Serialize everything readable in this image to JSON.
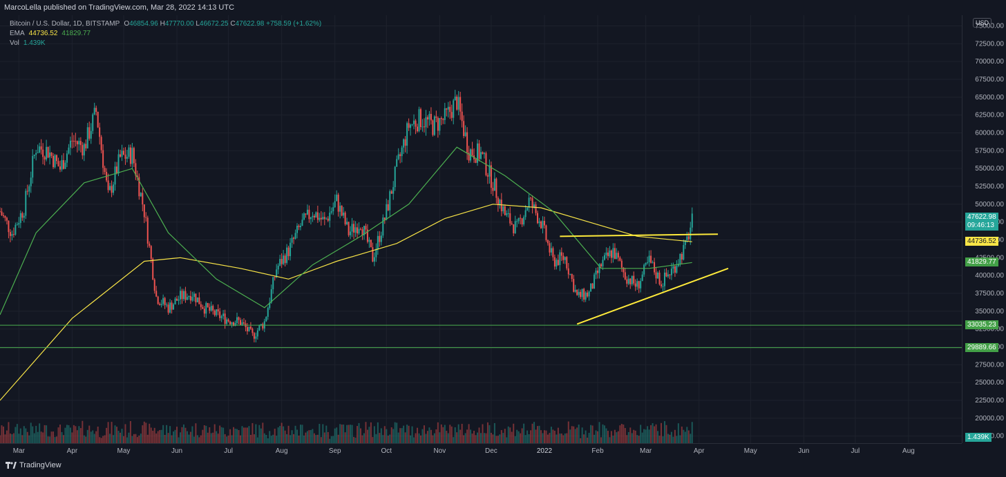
{
  "header": {
    "publisher": "MarcoLella published on TradingView.com, Mar 28, 2022 14:13 UTC"
  },
  "legend": {
    "symbol": "Bitcoin / U.S. Dollar, 1D, BITSTAMP",
    "open_label": "O",
    "open": "46854.96",
    "high_label": "H",
    "high": "47770.00",
    "low_label": "L",
    "low": "46672.25",
    "close_label": "C",
    "close": "47622.98",
    "change": "+758.59 (+1.62%)",
    "ema_label": "EMA",
    "ema1": "44736.52",
    "ema2": "41829.77",
    "vol_label": "Vol",
    "vol": "1.439K"
  },
  "price_axis": {
    "currency": "USD",
    "ticks": [
      "75000.00",
      "72500.00",
      "70000.00",
      "67500.00",
      "65000.00",
      "62500.00",
      "60000.00",
      "57500.00",
      "55000.00",
      "52500.00",
      "50000.00",
      "47500.00",
      "45000.00",
      "42500.00",
      "40000.00",
      "37500.00",
      "35000.00",
      "32500.00",
      "30000.00",
      "27500.00",
      "25000.00",
      "22500.00",
      "20000.00",
      "17500.00"
    ],
    "last_price": "47622.98",
    "countdown": "09:46:13",
    "ema1_tag": "44736.52",
    "ema2_tag": "41829.77",
    "level1_tag": "33035.23",
    "level2_tag": "29889.66",
    "vol_tag": "1.439K"
  },
  "time_axis": {
    "labels": [
      "Mar",
      "Apr",
      "May",
      "Jun",
      "Jul",
      "Aug",
      "Sep",
      "Oct",
      "Nov",
      "Dec",
      "2022",
      "Feb",
      "Mar",
      "Apr",
      "May",
      "Jun",
      "Jul",
      "Aug"
    ]
  },
  "footer": {
    "brand": "TradingView"
  },
  "colors": {
    "up": "#26a69a",
    "down": "#ef5350",
    "ema_slow": "#f9e547",
    "ema_fast": "#4caf50",
    "trend": "#ffeb3b",
    "hline": "#4caf50",
    "bg": "#131722"
  },
  "chart_data": {
    "type": "candlestick",
    "title": "Bitcoin / U.S. Dollar, 1D, BITSTAMP",
    "x_range": [
      "2021-02-18",
      "2022-09-01"
    ],
    "ylim": [
      16500,
      76500
    ],
    "grid": true,
    "closes_weekly": [
      {
        "date": "2021-02-18",
        "close": 49000
      },
      {
        "date": "2021-02-25",
        "close": 46000
      },
      {
        "date": "2021-03-04",
        "close": 49500
      },
      {
        "date": "2021-03-11",
        "close": 58000
      },
      {
        "date": "2021-03-18",
        "close": 57500
      },
      {
        "date": "2021-03-25",
        "close": 55000
      },
      {
        "date": "2021-04-01",
        "close": 59000
      },
      {
        "date": "2021-04-08",
        "close": 58000
      },
      {
        "date": "2021-04-15",
        "close": 63000
      },
      {
        "date": "2021-04-22",
        "close": 51000
      },
      {
        "date": "2021-04-29",
        "close": 56500
      },
      {
        "date": "2021-05-06",
        "close": 57000
      },
      {
        "date": "2021-05-13",
        "close": 49000
      },
      {
        "date": "2021-05-20",
        "close": 37000
      },
      {
        "date": "2021-05-27",
        "close": 35500
      },
      {
        "date": "2021-06-03",
        "close": 37000
      },
      {
        "date": "2021-06-10",
        "close": 37500
      },
      {
        "date": "2021-06-17",
        "close": 35500
      },
      {
        "date": "2021-06-24",
        "close": 34500
      },
      {
        "date": "2021-07-01",
        "close": 33800
      },
      {
        "date": "2021-07-08",
        "close": 33500
      },
      {
        "date": "2021-07-15",
        "close": 31500
      },
      {
        "date": "2021-07-22",
        "close": 33500
      },
      {
        "date": "2021-07-29",
        "close": 41000
      },
      {
        "date": "2021-08-05",
        "close": 43500
      },
      {
        "date": "2021-08-12",
        "close": 47000
      },
      {
        "date": "2021-08-19",
        "close": 49000
      },
      {
        "date": "2021-08-26",
        "close": 47500
      },
      {
        "date": "2021-09-02",
        "close": 50500
      },
      {
        "date": "2021-09-09",
        "close": 46000
      },
      {
        "date": "2021-09-16",
        "close": 47500
      },
      {
        "date": "2021-09-23",
        "close": 42500
      },
      {
        "date": "2021-09-30",
        "close": 48000
      },
      {
        "date": "2021-10-07",
        "close": 55000
      },
      {
        "date": "2021-10-14",
        "close": 61000
      },
      {
        "date": "2021-10-21",
        "close": 62000
      },
      {
        "date": "2021-10-28",
        "close": 61000
      },
      {
        "date": "2021-11-04",
        "close": 62000
      },
      {
        "date": "2021-11-11",
        "close": 64500
      },
      {
        "date": "2021-11-18",
        "close": 57500
      },
      {
        "date": "2021-11-25",
        "close": 57000
      },
      {
        "date": "2021-12-02",
        "close": 53000
      },
      {
        "date": "2021-12-09",
        "close": 48500
      },
      {
        "date": "2021-12-16",
        "close": 46500
      },
      {
        "date": "2021-12-23",
        "close": 50500
      },
      {
        "date": "2021-12-30",
        "close": 47500
      },
      {
        "date": "2022-01-06",
        "close": 42000
      },
      {
        "date": "2022-01-13",
        "close": 42500
      },
      {
        "date": "2022-01-20",
        "close": 37000
      },
      {
        "date": "2022-01-27",
        "close": 37500
      },
      {
        "date": "2022-02-03",
        "close": 41500
      },
      {
        "date": "2022-02-10",
        "close": 43500
      },
      {
        "date": "2022-02-17",
        "close": 40000
      },
      {
        "date": "2022-02-24",
        "close": 38500
      },
      {
        "date": "2022-03-03",
        "close": 42000
      },
      {
        "date": "2022-03-10",
        "close": 39000
      },
      {
        "date": "2022-03-17",
        "close": 41000
      },
      {
        "date": "2022-03-24",
        "close": 44000
      },
      {
        "date": "2022-03-28",
        "close": 47622.98
      }
    ],
    "ema_slow": [
      {
        "date": "2021-02-18",
        "close": 22500
      },
      {
        "date": "2021-04-01",
        "close": 34000
      },
      {
        "date": "2021-05-13",
        "close": 42000
      },
      {
        "date": "2021-06-03",
        "close": 42500
      },
      {
        "date": "2021-07-08",
        "close": 41000
      },
      {
        "date": "2021-08-05",
        "close": 39500
      },
      {
        "date": "2021-09-02",
        "close": 42000
      },
      {
        "date": "2021-10-07",
        "close": 44500
      },
      {
        "date": "2021-11-04",
        "close": 48000
      },
      {
        "date": "2021-12-02",
        "close": 50000
      },
      {
        "date": "2021-12-30",
        "close": 49500
      },
      {
        "date": "2022-01-27",
        "close": 47500
      },
      {
        "date": "2022-02-24",
        "close": 45500
      },
      {
        "date": "2022-03-28",
        "close": 44736.52
      }
    ],
    "ema_fast": [
      {
        "date": "2021-02-18",
        "close": 34500
      },
      {
        "date": "2021-03-11",
        "close": 46000
      },
      {
        "date": "2021-04-08",
        "close": 53000
      },
      {
        "date": "2021-05-06",
        "close": 55000
      },
      {
        "date": "2021-05-27",
        "close": 46000
      },
      {
        "date": "2021-06-24",
        "close": 39500
      },
      {
        "date": "2021-07-22",
        "close": 35500
      },
      {
        "date": "2021-08-19",
        "close": 41500
      },
      {
        "date": "2021-09-16",
        "close": 45500
      },
      {
        "date": "2021-10-14",
        "close": 50000
      },
      {
        "date": "2021-11-11",
        "close": 58000
      },
      {
        "date": "2021-12-09",
        "close": 54000
      },
      {
        "date": "2022-01-06",
        "close": 49000
      },
      {
        "date": "2022-02-03",
        "close": 41000
      },
      {
        "date": "2022-03-03",
        "close": 41000
      },
      {
        "date": "2022-03-28",
        "close": 41829.77
      }
    ],
    "horizontal_levels": [
      33035.23,
      29889.66
    ],
    "trendlines": [
      {
        "from": {
          "date": "2022-01-10",
          "price": 45500
        },
        "to": {
          "date": "2022-04-12",
          "price": 45800
        }
      },
      {
        "from": {
          "date": "2022-01-20",
          "price": 33200
        },
        "to": {
          "date": "2022-04-18",
          "price": 41000
        }
      }
    ]
  }
}
